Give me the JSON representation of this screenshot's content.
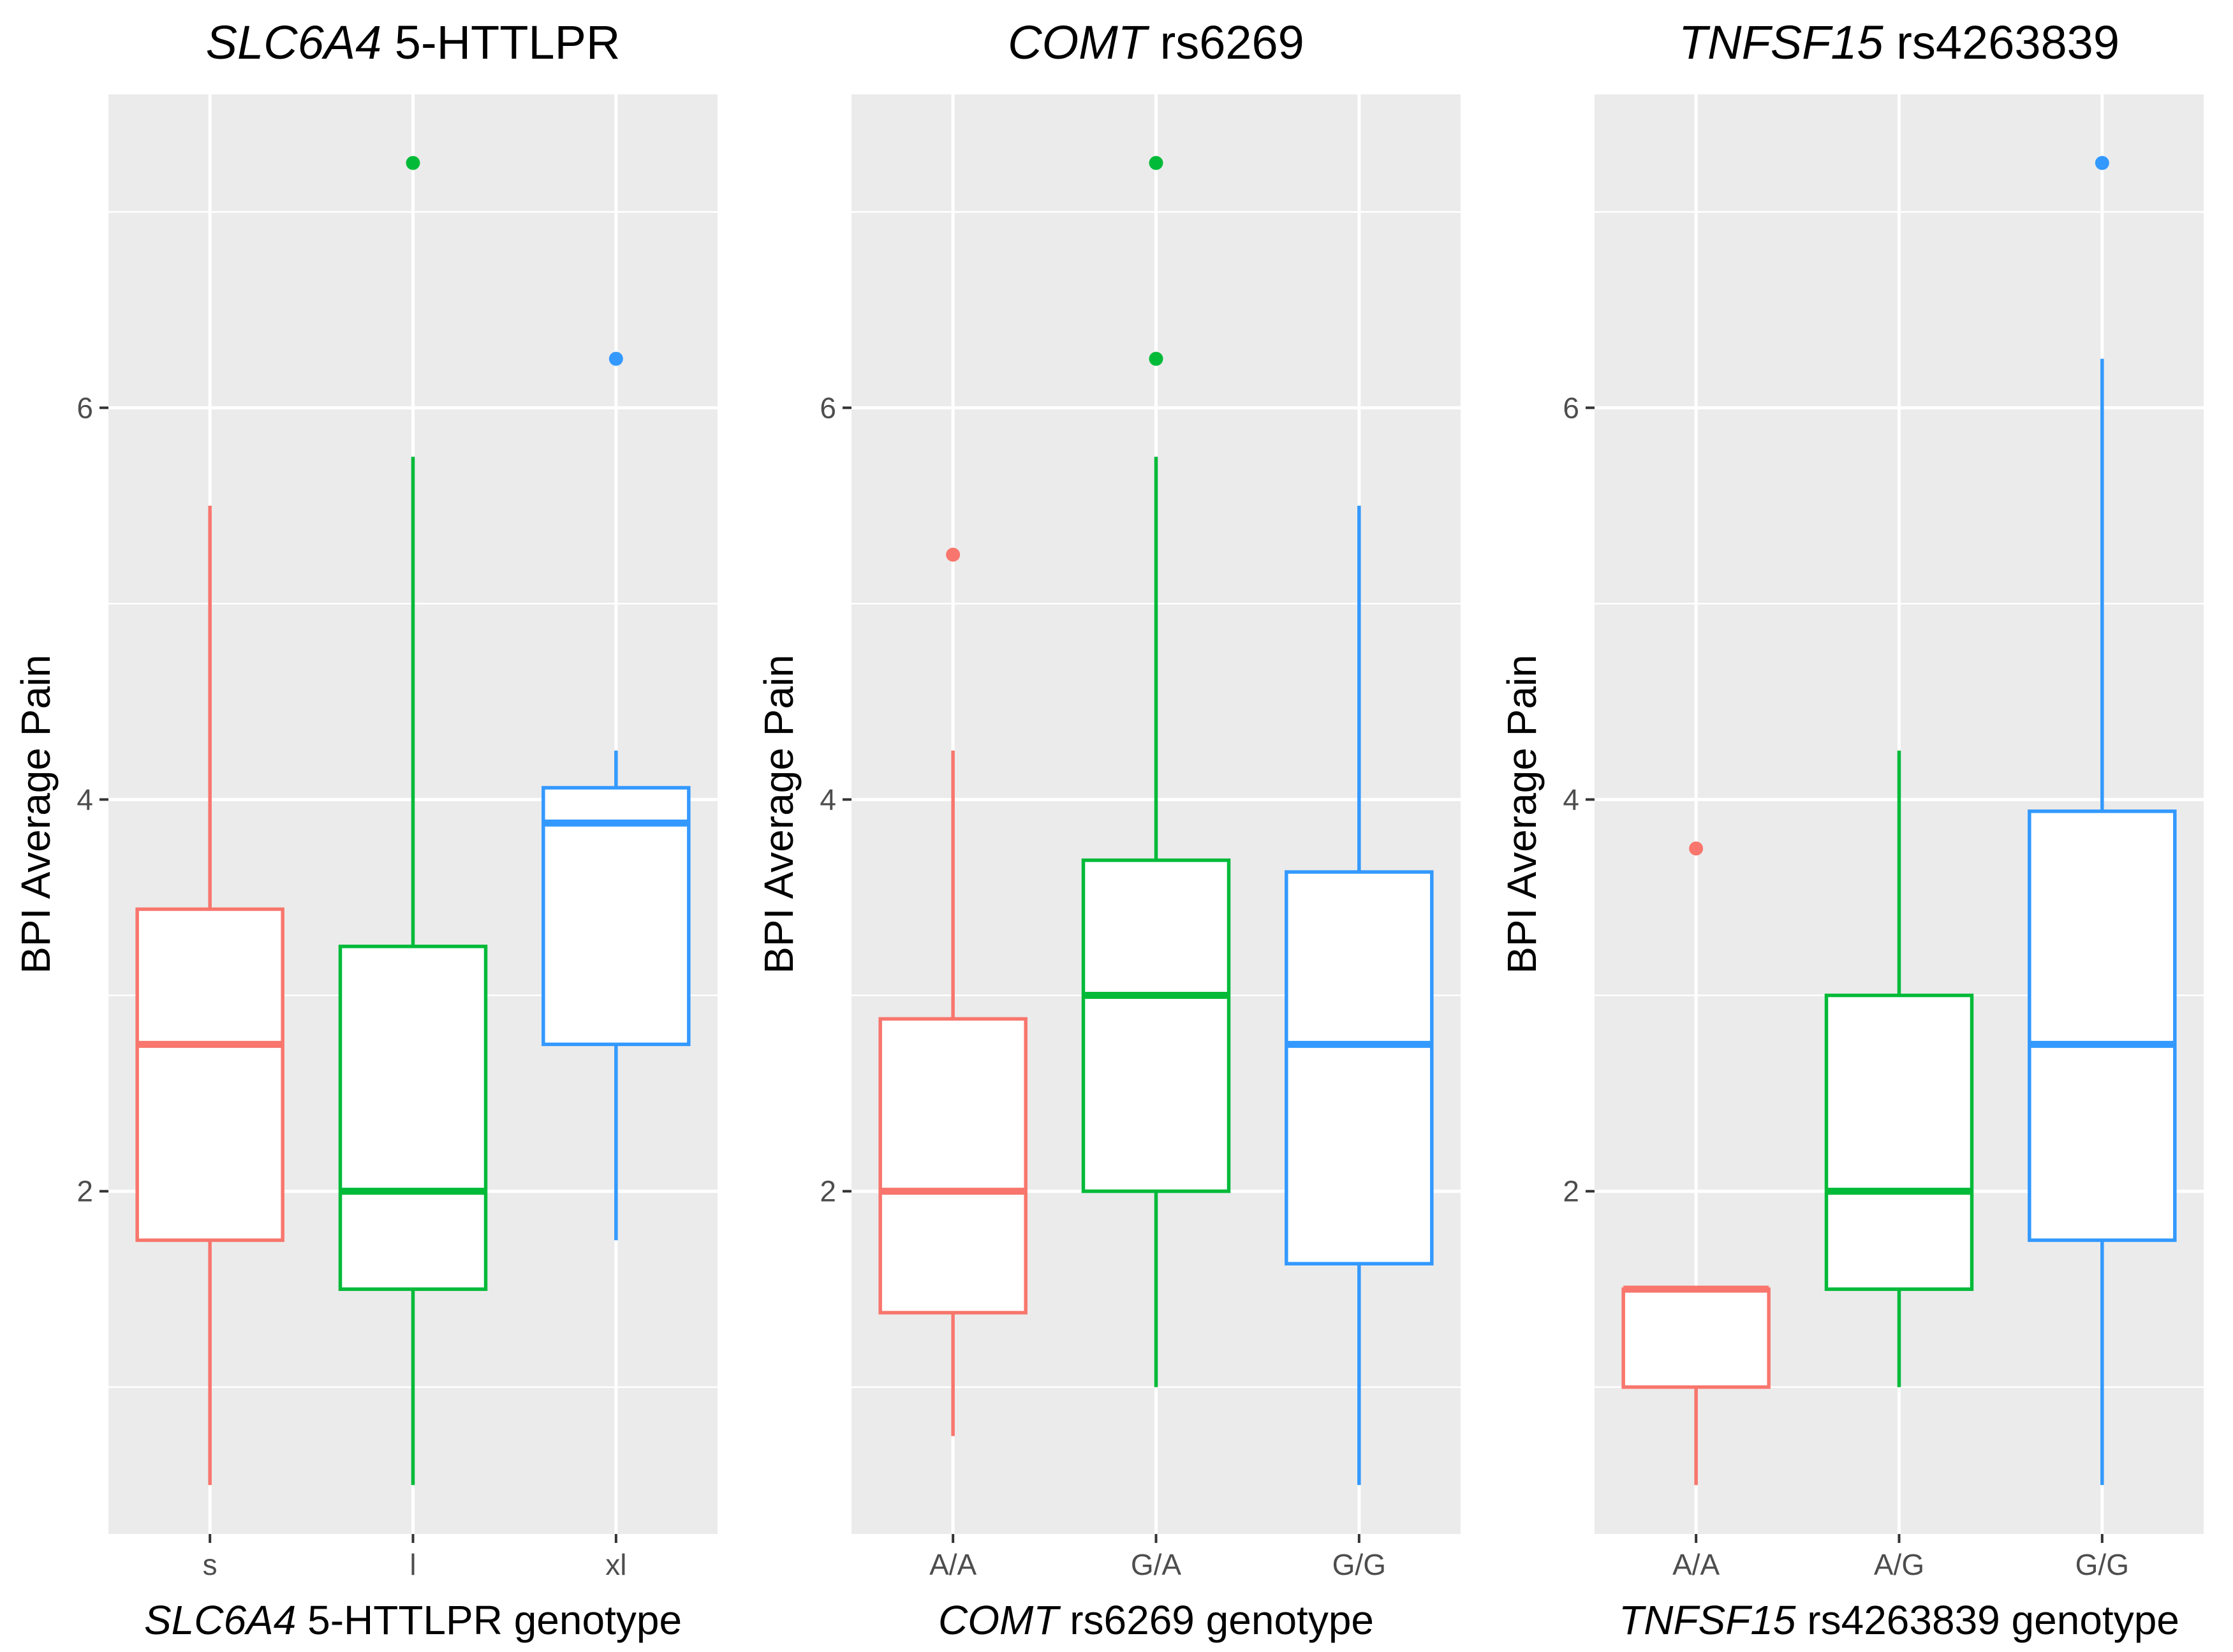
{
  "chart_data": [
    {
      "type": "boxplot",
      "title_gene": "SLC6A4",
      "title_rest": " 5-HTTLPR",
      "xlabel_gene": "SLC6A4",
      "xlabel_rest": " 5-HTTLPR genotype",
      "ylabel": "BPI Average Pain",
      "ylim": [
        0.25,
        7.6
      ],
      "yticks": [
        2,
        4,
        6
      ],
      "ytick_labels": [
        "2",
        "4",
        "6"
      ],
      "grid": true,
      "categories": [
        "s",
        "l",
        "xl"
      ],
      "colors": [
        "#F8766D",
        "#00BA38",
        "#3399FF"
      ],
      "boxes": [
        {
          "whisker_low": 0.5,
          "q1": 1.75,
          "median": 2.75,
          "q3": 3.44,
          "whisker_high": 5.5,
          "outliers": []
        },
        {
          "whisker_low": 0.5,
          "q1": 1.5,
          "median": 2.0,
          "q3": 3.25,
          "whisker_high": 5.75,
          "outliers": [
            7.25
          ]
        },
        {
          "whisker_low": 1.75,
          "q1": 2.75,
          "median": 3.88,
          "q3": 4.06,
          "whisker_high": 4.25,
          "outliers": [
            6.25
          ]
        }
      ]
    },
    {
      "type": "boxplot",
      "title_gene": "COMT",
      "title_rest": " rs6269",
      "xlabel_gene": "COMT",
      "xlabel_rest": " rs6269 genotype",
      "ylabel": "BPI Average Pain",
      "ylim": [
        0.25,
        7.6
      ],
      "yticks": [
        2,
        4,
        6
      ],
      "ytick_labels": [
        "2",
        "4",
        "6"
      ],
      "grid": true,
      "categories": [
        "A/A",
        "G/A",
        "G/G"
      ],
      "colors": [
        "#F8766D",
        "#00BA38",
        "#3399FF"
      ],
      "boxes": [
        {
          "whisker_low": 0.75,
          "q1": 1.38,
          "median": 2.0,
          "q3": 2.88,
          "whisker_high": 4.25,
          "outliers": [
            5.25
          ]
        },
        {
          "whisker_low": 1.0,
          "q1": 2.0,
          "median": 3.0,
          "q3": 3.69,
          "whisker_high": 5.75,
          "outliers": [
            6.25,
            7.25
          ]
        },
        {
          "whisker_low": 0.5,
          "q1": 1.63,
          "median": 2.75,
          "q3": 3.63,
          "whisker_high": 5.5,
          "outliers": []
        }
      ]
    },
    {
      "type": "boxplot",
      "title_gene": "TNFSF15",
      "title_rest": " rs4263839",
      "xlabel_gene": "TNFSF15",
      "xlabel_rest": " rs4263839 genotype",
      "ylabel": "BPI Average Pain",
      "ylim": [
        0.25,
        7.6
      ],
      "yticks": [
        2,
        4,
        6
      ],
      "ytick_labels": [
        "2",
        "4",
        "6"
      ],
      "grid": true,
      "categories": [
        "A/A",
        "A/G",
        "G/G"
      ],
      "colors": [
        "#F8766D",
        "#00BA38",
        "#3399FF"
      ],
      "boxes": [
        {
          "whisker_low": 0.5,
          "q1": 1.0,
          "median": 1.5,
          "q3": 1.5,
          "whisker_high": 1.5,
          "outliers": [
            3.75
          ]
        },
        {
          "whisker_low": 1.0,
          "q1": 1.5,
          "median": 2.0,
          "q3": 3.0,
          "whisker_high": 4.25,
          "outliers": []
        },
        {
          "whisker_low": 0.5,
          "q1": 1.75,
          "median": 2.75,
          "q3": 3.94,
          "whisker_high": 6.25,
          "outliers": [
            7.25
          ]
        }
      ]
    }
  ]
}
